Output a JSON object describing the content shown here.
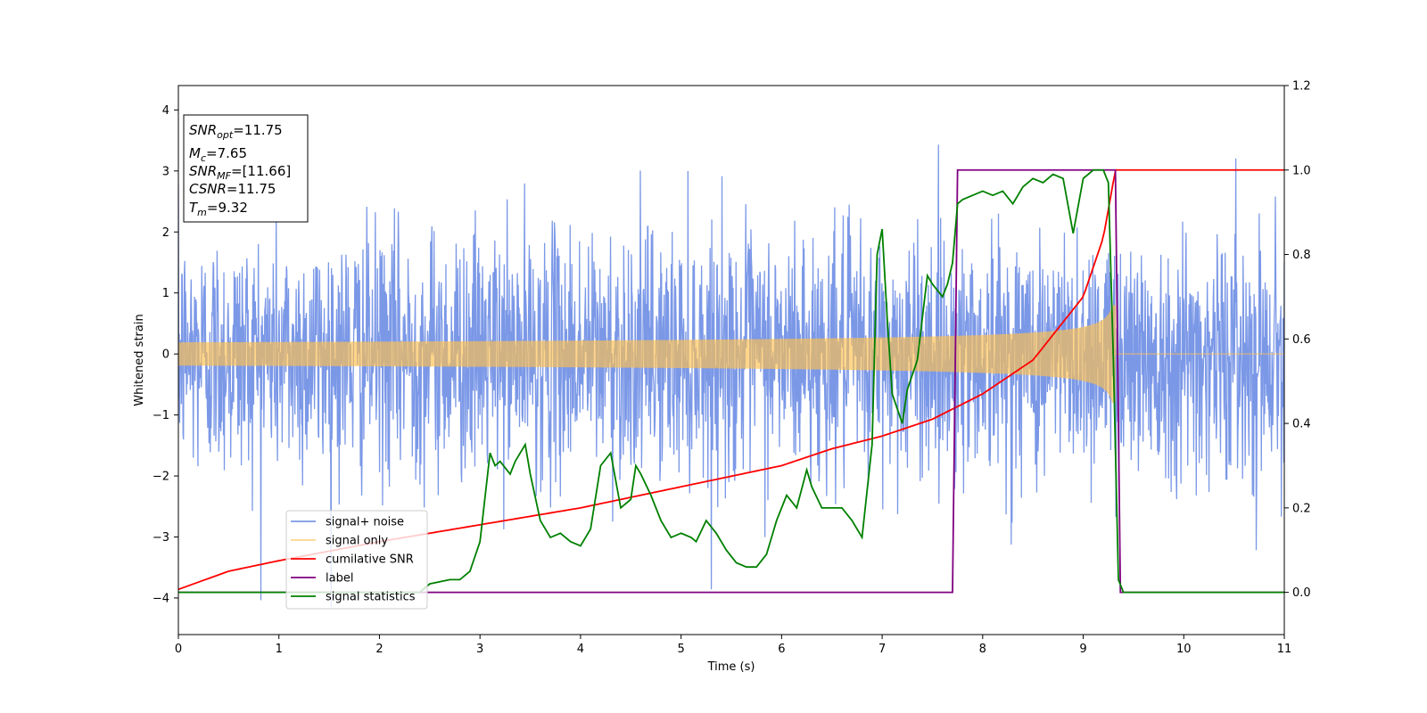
{
  "chart_data": {
    "type": "line",
    "xlabel": "Time (s)",
    "ylabel_left": "Whitened strain",
    "ylabel_right": "",
    "xlim": [
      0,
      11
    ],
    "ylim_left": [
      -4.6,
      4.4
    ],
    "ylim_right": [
      -0.1,
      1.2
    ],
    "xticks": [
      0,
      1,
      2,
      3,
      4,
      5,
      6,
      7,
      8,
      9,
      10,
      11
    ],
    "yticks_left": [
      -4,
      -3,
      -2,
      -1,
      0,
      1,
      2,
      3,
      4
    ],
    "yticks_left_labels": [
      "−4",
      "−3",
      "−2",
      "−1",
      "0",
      "1",
      "2",
      "3",
      "4"
    ],
    "yticks_right": [
      0.0,
      0.2,
      0.4,
      0.6,
      0.8,
      1.0,
      1.2
    ],
    "yticks_right_labels": [
      "0.0",
      "0.2",
      "0.4",
      "0.6",
      "0.8",
      "1.0",
      "1.2"
    ],
    "grid": false,
    "legend_placement": "lower-left",
    "info_box": {
      "placement": "upper-left",
      "lines": [
        {
          "sym": "SNR",
          "sub": "opt",
          "val": "=11.75"
        },
        {
          "sym": "M",
          "sub": "c",
          "val": "=7.65"
        },
        {
          "sym": "SNR",
          "sub": "MF",
          "val": "=[11.66]"
        },
        {
          "sym": "CSNR",
          "sub": "",
          "val": "=11.75"
        },
        {
          "sym": "T",
          "sub": "m",
          "val": "=9.32"
        }
      ]
    },
    "series": [
      {
        "name": "signal+ noise",
        "axis": "left",
        "color": "#6486e3",
        "description_values": {
          "noise_std": 1.0,
          "max": 4.0,
          "min": -4.15
        }
      },
      {
        "name": "signal only",
        "axis": "left",
        "color": "#ffc04d",
        "chirp": {
          "t_merge": 9.32,
          "amp_start": 0.03,
          "amp_end": 0.8
        }
      },
      {
        "name": "cumilative SNR",
        "axis": "right",
        "color": "#ff0000",
        "x": [
          0,
          0.5,
          1,
          2,
          3,
          4,
          5,
          6,
          6.5,
          7,
          7.5,
          8,
          8.5,
          9,
          9.2,
          9.32,
          11
        ],
        "y": [
          0.007,
          0.05,
          0.075,
          0.12,
          0.16,
          0.2,
          0.25,
          0.3,
          0.34,
          0.37,
          0.41,
          0.47,
          0.55,
          0.7,
          0.84,
          1.0,
          1.0
        ]
      },
      {
        "name": "label",
        "axis": "right",
        "color": "#800080",
        "x": [
          0,
          7.7,
          7.75,
          9.32,
          9.37,
          11
        ],
        "y": [
          0,
          0,
          1,
          1,
          0,
          0
        ]
      },
      {
        "name": "signal statistics",
        "axis": "right",
        "color": "#008000",
        "x": [
          0,
          2.4,
          2.5,
          2.7,
          2.8,
          2.9,
          3.0,
          3.1,
          3.15,
          3.2,
          3.3,
          3.35,
          3.45,
          3.5,
          3.6,
          3.7,
          3.8,
          3.9,
          4.0,
          4.1,
          4.2,
          4.3,
          4.4,
          4.5,
          4.55,
          4.6,
          4.7,
          4.8,
          4.9,
          5.0,
          5.1,
          5.15,
          5.25,
          5.35,
          5.45,
          5.55,
          5.65,
          5.75,
          5.85,
          5.95,
          6.05,
          6.15,
          6.25,
          6.3,
          6.4,
          6.5,
          6.6,
          6.7,
          6.8,
          6.9,
          6.95,
          7.0,
          7.05,
          7.1,
          7.2,
          7.25,
          7.35,
          7.45,
          7.5,
          7.6,
          7.65,
          7.7,
          7.75,
          7.8,
          7.9,
          8.0,
          8.1,
          8.2,
          8.3,
          8.4,
          8.5,
          8.6,
          8.7,
          8.8,
          8.9,
          9.0,
          9.1,
          9.2,
          9.25,
          9.3,
          9.35,
          9.4,
          9.5,
          11
        ],
        "y": [
          0.0,
          0.0,
          0.02,
          0.03,
          0.03,
          0.05,
          0.12,
          0.33,
          0.3,
          0.31,
          0.28,
          0.31,
          0.35,
          0.28,
          0.17,
          0.13,
          0.14,
          0.12,
          0.11,
          0.15,
          0.3,
          0.33,
          0.2,
          0.22,
          0.3,
          0.28,
          0.23,
          0.17,
          0.13,
          0.14,
          0.13,
          0.12,
          0.17,
          0.14,
          0.1,
          0.07,
          0.06,
          0.06,
          0.09,
          0.17,
          0.23,
          0.2,
          0.29,
          0.25,
          0.2,
          0.2,
          0.2,
          0.17,
          0.13,
          0.35,
          0.8,
          0.86,
          0.65,
          0.47,
          0.4,
          0.48,
          0.55,
          0.75,
          0.73,
          0.7,
          0.73,
          0.78,
          0.92,
          0.93,
          0.94,
          0.95,
          0.94,
          0.95,
          0.92,
          0.96,
          0.98,
          0.97,
          0.99,
          0.98,
          0.85,
          0.98,
          1.0,
          1.0,
          0.97,
          0.55,
          0.03,
          0.0,
          0.0,
          0.0
        ]
      }
    ]
  }
}
